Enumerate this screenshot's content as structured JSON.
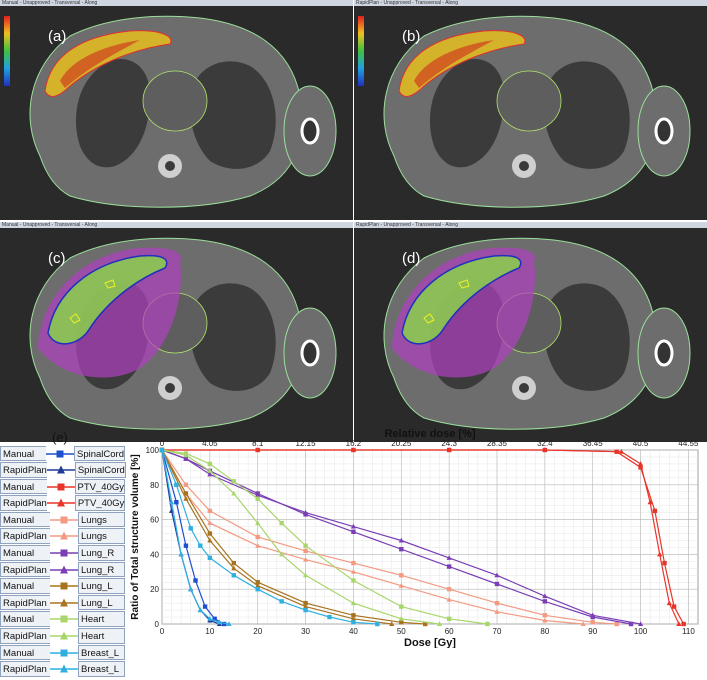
{
  "panels": [
    {
      "id": "a",
      "label": "(a)",
      "title": "Manual - Unapproved - Transversal - Along",
      "left": 0,
      "top": 0,
      "mode": "dose"
    },
    {
      "id": "b",
      "label": "(b)",
      "title": "RapidPlan - Unapproved - Transversal - Along",
      "left": 354,
      "top": 0,
      "mode": "dose"
    },
    {
      "id": "c",
      "label": "(c)",
      "title": "Manual - Unapproved - Transversal - Along",
      "left": 0,
      "top": 222,
      "mode": "isodose"
    },
    {
      "id": "d",
      "label": "(d)",
      "title": "RapidPlan - Unapproved - Transversal - Along",
      "left": 354,
      "top": 222,
      "mode": "isodose"
    }
  ],
  "legend_label": "(e)",
  "legend": [
    {
      "plan": "Manual",
      "structure": "SpinalCord",
      "color": "#1f4fd1",
      "marker": "square"
    },
    {
      "plan": "RapidPlan",
      "structure": "SpinalCord",
      "color": "#1f3a99",
      "marker": "triangle"
    },
    {
      "plan": "Manual",
      "structure": "PTV_40Gy",
      "color": "#e8352a",
      "marker": "square"
    },
    {
      "plan": "RapidPlan",
      "structure": "PTV_40Gy",
      "color": "#e8352a",
      "marker": "triangle"
    },
    {
      "plan": "Manual",
      "structure": "Lungs",
      "color": "#f29a82",
      "marker": "square"
    },
    {
      "plan": "RapidPlan",
      "structure": "Lungs",
      "color": "#f29a82",
      "marker": "triangle"
    },
    {
      "plan": "Manual",
      "structure": "Lung_R",
      "color": "#7a3fb5",
      "marker": "square"
    },
    {
      "plan": "RapidPlan",
      "structure": "Lung_R",
      "color": "#7a3fb5",
      "marker": "triangle"
    },
    {
      "plan": "Manual",
      "structure": "Lung_L",
      "color": "#a8731e",
      "marker": "square"
    },
    {
      "plan": "RapidPlan",
      "structure": "Lung_L",
      "color": "#a8731e",
      "marker": "triangle"
    },
    {
      "plan": "Manual",
      "structure": "Heart",
      "color": "#a8d66a",
      "marker": "square"
    },
    {
      "plan": "RapidPlan",
      "structure": "Heart",
      "color": "#a8d66a",
      "marker": "triangle"
    },
    {
      "plan": "Manual",
      "structure": "Breast_L",
      "color": "#2fb0e0",
      "marker": "square"
    },
    {
      "plan": "RapidPlan",
      "structure": "Breast_L",
      "color": "#2fb0e0",
      "marker": "triangle"
    }
  ],
  "chart_data": {
    "type": "line",
    "xlabel": "Dose [Gy]",
    "ylabel": "Ratio of Total structure volume [%]",
    "x2label": "Relative dose [%]",
    "xlim": [
      0,
      112
    ],
    "ylim": [
      0,
      100
    ],
    "x_ticks": [
      0,
      10,
      20,
      30,
      40,
      50,
      60,
      70,
      80,
      90,
      100,
      110
    ],
    "y_ticks": [
      0,
      20,
      40,
      60,
      80,
      100
    ],
    "x2_ticks": [
      "0",
      "4.05",
      "8.1",
      "12.15",
      "16.2",
      "20.25",
      "24.3",
      "28.35",
      "32.4",
      "36.45",
      "40.5",
      "44.55"
    ],
    "grid": true,
    "series": [
      {
        "name": "Manual SpinalCord",
        "x": [
          0,
          3,
          5,
          7,
          9,
          11,
          13
        ],
        "y": [
          100,
          70,
          45,
          25,
          10,
          3,
          0
        ]
      },
      {
        "name": "RapidPlan SpinalCord",
        "x": [
          0,
          2,
          4,
          6,
          8,
          10,
          12
        ],
        "y": [
          100,
          65,
          40,
          20,
          8,
          2,
          0
        ]
      },
      {
        "name": "Manual PTV_40Gy",
        "x": [
          0,
          20,
          40,
          60,
          80,
          95,
          100,
          103,
          105,
          107,
          109
        ],
        "y": [
          100,
          100,
          100,
          100,
          100,
          99,
          90,
          65,
          35,
          10,
          0
        ]
      },
      {
        "name": "RapidPlan PTV_40Gy",
        "x": [
          0,
          20,
          40,
          60,
          80,
          96,
          100,
          102,
          104,
          106,
          108
        ],
        "y": [
          100,
          100,
          100,
          100,
          100,
          99,
          92,
          70,
          40,
          12,
          0
        ]
      },
      {
        "name": "Manual Lungs",
        "x": [
          0,
          5,
          10,
          20,
          30,
          40,
          50,
          60,
          70,
          80,
          90,
          95
        ],
        "y": [
          100,
          80,
          65,
          50,
          42,
          35,
          28,
          20,
          12,
          5,
          1,
          0
        ]
      },
      {
        "name": "RapidPlan Lungs",
        "x": [
          0,
          5,
          10,
          20,
          30,
          40,
          50,
          60,
          70,
          80,
          88
        ],
        "y": [
          100,
          75,
          58,
          45,
          37,
          30,
          22,
          14,
          7,
          2,
          0
        ]
      },
      {
        "name": "Manual Lung_R",
        "x": [
          0,
          5,
          10,
          20,
          30,
          40,
          50,
          60,
          70,
          80,
          90,
          98
        ],
        "y": [
          100,
          95,
          88,
          75,
          63,
          53,
          43,
          33,
          23,
          13,
          4,
          0
        ]
      },
      {
        "name": "RapidPlan Lung_R",
        "x": [
          0,
          5,
          10,
          20,
          30,
          40,
          50,
          60,
          70,
          80,
          90,
          100
        ],
        "y": [
          100,
          95,
          86,
          74,
          64,
          56,
          48,
          38,
          28,
          16,
          5,
          0
        ]
      },
      {
        "name": "Manual Lung_L",
        "x": [
          0,
          5,
          10,
          15,
          20,
          30,
          40,
          50,
          55
        ],
        "y": [
          100,
          75,
          52,
          35,
          24,
          12,
          5,
          1,
          0
        ]
      },
      {
        "name": "RapidPlan Lung_L",
        "x": [
          0,
          5,
          10,
          15,
          20,
          30,
          40,
          48
        ],
        "y": [
          100,
          72,
          48,
          32,
          22,
          10,
          3,
          0
        ]
      },
      {
        "name": "Manual Heart",
        "x": [
          0,
          5,
          10,
          15,
          20,
          25,
          30,
          40,
          50,
          60,
          68
        ],
        "y": [
          100,
          98,
          92,
          82,
          72,
          58,
          45,
          25,
          10,
          3,
          0
        ]
      },
      {
        "name": "RapidPlan Heart",
        "x": [
          0,
          5,
          10,
          15,
          20,
          25,
          30,
          40,
          50,
          58
        ],
        "y": [
          100,
          97,
          88,
          75,
          58,
          40,
          28,
          12,
          3,
          0
        ]
      },
      {
        "name": "Manual Breast_L",
        "x": [
          0,
          3,
          6,
          8,
          10,
          15,
          20,
          25,
          30,
          35,
          40,
          45
        ],
        "y": [
          100,
          80,
          55,
          45,
          38,
          28,
          20,
          13,
          8,
          4,
          1,
          0
        ]
      },
      {
        "name": "RapidPlan Breast_L",
        "x": [
          0,
          2,
          4,
          6,
          8,
          10,
          12,
          14
        ],
        "y": [
          100,
          70,
          40,
          20,
          8,
          3,
          1,
          0
        ]
      }
    ]
  }
}
